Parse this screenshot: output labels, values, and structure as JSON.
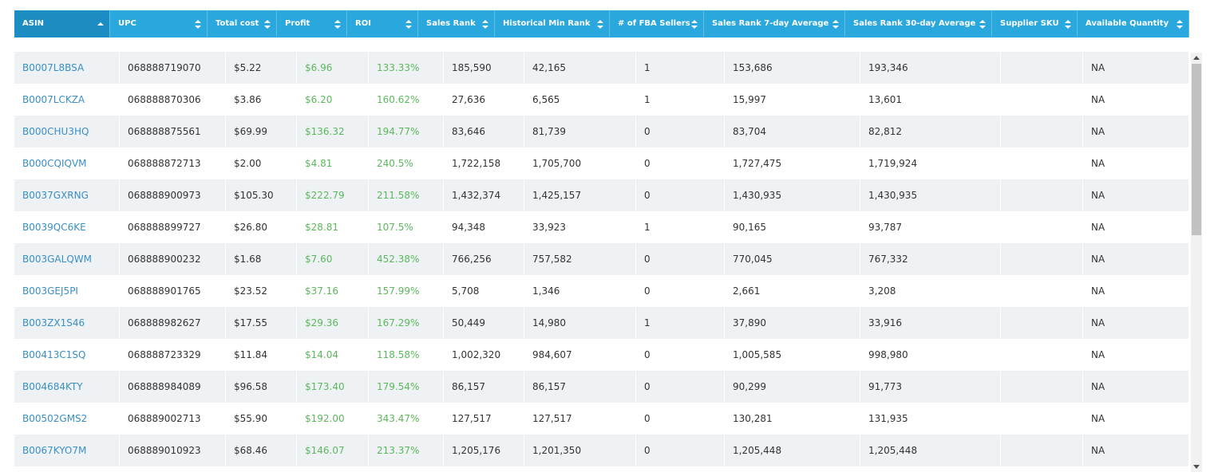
{
  "table": {
    "columns": [
      "ASIN",
      "UPC",
      "Total cost",
      "Profit",
      "ROI",
      "Sales Rank",
      "Historical Min Rank",
      "# of FBA Sellers",
      "Sales Rank 7-day Average",
      "Sales Rank 30-day Average",
      "Supplier SKU",
      "Available Quantity"
    ],
    "rows": [
      [
        "B0007L8BSA",
        "068888719070",
        "$5.22",
        "$6.96",
        "133.33%",
        "185,590",
        "42,165",
        "1",
        "153,686",
        "193,346",
        null,
        "NA"
      ],
      [
        "B0007LCKZA",
        "068888870306",
        "$3.86",
        "$6.20",
        "160.62%",
        "27,636",
        "6,565",
        "1",
        "15,997",
        "13,601",
        null,
        "NA"
      ],
      [
        "B000CHU3HQ",
        "068888875561",
        "$69.99",
        "$136.32",
        "194.77%",
        "83,646",
        "81,739",
        "0",
        "83,704",
        "82,812",
        null,
        "NA"
      ],
      [
        "B000CQIQVM",
        "068888872713",
        "$2.00",
        "$4.81",
        "240.5%",
        "1,722,158",
        "1,705,700",
        "0",
        "1,727,475",
        "1,719,924",
        null,
        "NA"
      ],
      [
        "B0037GXRNG",
        "068888900973",
        "$105.30",
        "$222.79",
        "211.58%",
        "1,432,374",
        "1,425,157",
        "0",
        "1,430,935",
        "1,430,935",
        null,
        "NA"
      ],
      [
        "B0039QC6KE",
        "068888899727",
        "$26.80",
        "$28.81",
        "107.5%",
        "94,348",
        "33,923",
        "1",
        "90,165",
        "93,787",
        null,
        "NA"
      ],
      [
        "B003GALQWM",
        "068888900232",
        "$1.68",
        "$7.60",
        "452.38%",
        "766,256",
        "757,582",
        "0",
        "770,045",
        "767,332",
        null,
        "NA"
      ],
      [
        "B003GEJ5PI",
        "068888901765",
        "$23.52",
        "$37.16",
        "157.99%",
        "5,708",
        "1,346",
        "0",
        "2,661",
        "3,208",
        null,
        "NA"
      ],
      [
        "B003ZX1S46",
        "068888982627",
        "$17.55",
        "$29.36",
        "167.29%",
        "50,449",
        "14,980",
        "1",
        "37,890",
        "33,916",
        null,
        "NA"
      ],
      [
        "B00413C1SQ",
        "068888723329",
        "$11.84",
        "$14.04",
        "118.58%",
        "1,002,320",
        "984,607",
        "0",
        "1,005,585",
        "998,980",
        null,
        "NA"
      ],
      [
        "B004684KTY",
        "068888984089",
        "$96.58",
        "$173.40",
        "179.54%",
        "86,157",
        "86,157",
        "0",
        "90,299",
        "91,773",
        null,
        "NA"
      ],
      [
        "B00502GMS2",
        "068889002713",
        "$55.90",
        "$192.00",
        "343.47%",
        "127,517",
        "127,517",
        "0",
        "130,281",
        "131,935",
        null,
        "NA"
      ],
      [
        "B0067KYO7M",
        "068889010923",
        "$68.46",
        "$146.07",
        "213.37%",
        "1,205,176",
        "1,201,350",
        "0",
        "1,205,448",
        "1,205,448",
        null,
        "NA"
      ]
    ]
  }
}
